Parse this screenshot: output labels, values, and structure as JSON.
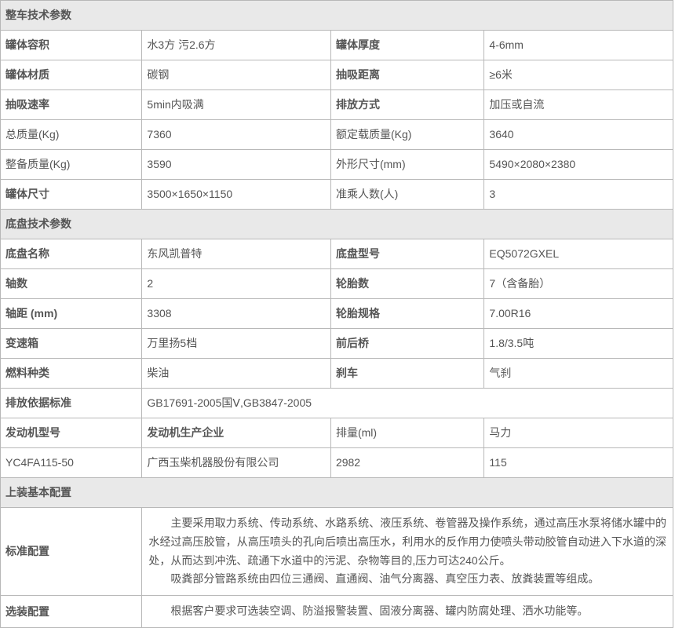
{
  "sections": {
    "vehicle_params_header": "整车技术参数",
    "chassis_params_header": "底盘技术参数",
    "equipment_config_header": "上装基本配置"
  },
  "vehicle": {
    "tank_volume_label": "罐体容积",
    "tank_volume_value": "水3方 污2.6方",
    "tank_thickness_label": "罐体厚度",
    "tank_thickness_value": "4-6mm",
    "tank_material_label": "罐体材质",
    "tank_material_value": "碳钢",
    "suction_distance_label": "抽吸距离",
    "suction_distance_value": "≥6米",
    "suction_rate_label": "抽吸速率",
    "suction_rate_value": "5min内吸满",
    "discharge_mode_label": "排放方式",
    "discharge_mode_value": "加压或自流",
    "total_mass_label": "总质量(Kg)",
    "total_mass_value": "7360",
    "rated_load_label": "额定载质量(Kg)",
    "rated_load_value": "3640",
    "curb_mass_label": "整备质量(Kg)",
    "curb_mass_value": "3590",
    "overall_size_label": "外形尺寸(mm)",
    "overall_size_value": "5490×2080×2380",
    "tank_size_label": "罐体尺寸",
    "tank_size_value": "3500×1650×1150",
    "passengers_label": "准乘人数(人)",
    "passengers_value": "3"
  },
  "chassis": {
    "chassis_name_label": "底盘名称",
    "chassis_name_value": "东风凯普特",
    "chassis_model_label": "底盘型号",
    "chassis_model_value": "EQ5072GXEL",
    "axle_count_label": "轴数",
    "axle_count_value": "2",
    "tire_count_label": "轮胎数",
    "tire_count_value": "7（含备胎）",
    "wheelbase_label": "轴距 (mm)",
    "wheelbase_value": "3308",
    "tire_spec_label": "轮胎规格",
    "tire_spec_value": "7.00R16",
    "gearbox_label": "变速箱",
    "gearbox_value": "万里扬5档",
    "axle_front_rear_label": "前后桥",
    "axle_front_rear_value": "1.8/3.5吨",
    "fuel_type_label": "燃料种类",
    "fuel_type_value": "柴油",
    "brake_label": "刹车",
    "brake_value": "气刹",
    "emission_standard_label": "排放依据标准",
    "emission_standard_value": "GB17691-2005国Ⅴ,GB3847-2005",
    "engine_model_label": "发动机型号",
    "engine_maker_label": "发动机生产企业",
    "displacement_label": "排量(ml)",
    "horsepower_label": "马力",
    "engine_model_value": "YC4FA115-50",
    "engine_maker_value": "广西玉柴机器股份有限公司",
    "displacement_value": "2982",
    "horsepower_value": "115"
  },
  "config": {
    "standard_label": "标准配置",
    "standard_value": "　　主要采用取力系统、传动系统、水路系统、液压系统、卷管器及操作系统，通过高压水泵将储水罐中的水经过高压胶管，从高压喷头的孔向后喷出高压水，利用水的反作用力使喷头带动胶管自动进入下水道的深处，从而达到冲洗、疏通下水道中的污泥、杂物等目的,压力可达240公斤。\n　　吸粪部分管路系统由四位三通阀、直通阀、油气分离器、真空压力表、放粪装置等组成。",
    "optional_label": "选装配置",
    "optional_value": "　　根据客户要求可选装空调、防溢报警装置、固液分离器、罐内防腐处理、洒水功能等。"
  }
}
